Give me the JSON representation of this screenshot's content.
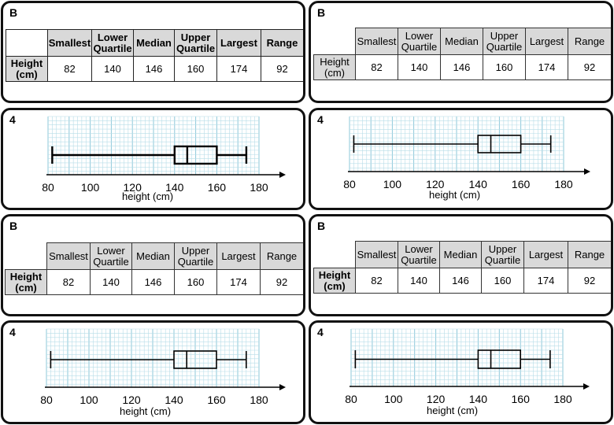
{
  "panels": [
    {
      "table_label": "B",
      "columns": [
        "Smallest",
        "Lower Quartile",
        "Median",
        "Upper Quartile",
        "Largest",
        "Range"
      ],
      "row_header": "Height (cm)",
      "values": [
        "82",
        "140",
        "146",
        "160",
        "174",
        "92"
      ],
      "plot_label": "4",
      "axis_label": "height (cm)",
      "ticks": [
        "80",
        "100",
        "120",
        "140",
        "160",
        "180"
      ]
    },
    {
      "table_label": "B",
      "columns": [
        "Smallest",
        "Lower Quartile",
        "Median",
        "Upper Quartile",
        "Largest",
        "Range"
      ],
      "row_header": "Height (cm)",
      "values": [
        "82",
        "140",
        "146",
        "160",
        "174",
        "92"
      ],
      "plot_label": "4",
      "axis_label": "height (cm)",
      "ticks": [
        "80",
        "100",
        "120",
        "140",
        "160",
        "180"
      ]
    },
    {
      "table_label": "B",
      "columns": [
        "Smallest",
        "Lower Quartile",
        "Median",
        "Upper Quartile",
        "Largest",
        "Range"
      ],
      "row_header": "Height (cm)",
      "values": [
        "82",
        "140",
        "146",
        "160",
        "174",
        "92"
      ],
      "plot_label": "4",
      "axis_label": "height (cm)",
      "ticks": [
        "80",
        "100",
        "120",
        "140",
        "160",
        "180"
      ]
    },
    {
      "table_label": "B",
      "columns": [
        "Smallest",
        "Lower Quartile",
        "Median",
        "Upper Quartile",
        "Largest",
        "Range"
      ],
      "row_header": "Height (cm)",
      "values": [
        "82",
        "140",
        "146",
        "160",
        "174",
        "92"
      ],
      "plot_label": "4",
      "axis_label": "height (cm)",
      "ticks": [
        "80",
        "100",
        "120",
        "140",
        "160",
        "180"
      ]
    }
  ],
  "boxplot": {
    "min": 82,
    "q1": 140,
    "median": 146,
    "q3": 160,
    "max": 174,
    "axis_min": 80,
    "axis_max": 180
  },
  "colors": {
    "grid": "#b7dde8",
    "grid_major": "#8ec8da",
    "header_fill": "#d9d9d9",
    "card_border": "#111111"
  }
}
